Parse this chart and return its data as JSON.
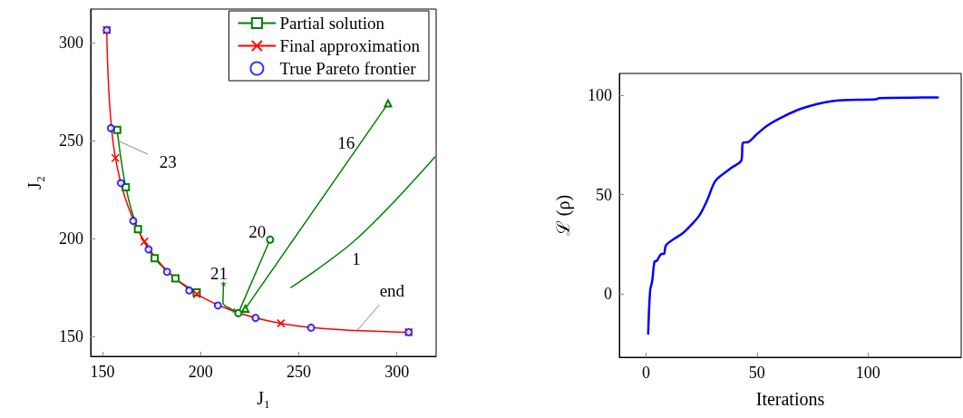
{
  "chart_data": [
    {
      "type": "line",
      "xlabel": "J₁",
      "ylabel": "J₂",
      "xlim": [
        144,
        320
      ],
      "ylim": [
        140,
        317
      ],
      "xticks": [
        150,
        200,
        250,
        300
      ],
      "yticks": [
        150,
        200,
        250,
        300
      ],
      "grid": false,
      "legend": "top right",
      "annotations": [
        {
          "text": "23",
          "x": 157.5,
          "y": 255.4
        },
        {
          "text": "16",
          "x": 281.5,
          "y": 248.8
        },
        {
          "text": "20",
          "x": 235.4,
          "y": 199.5
        },
        {
          "text": "21",
          "x": 211.7,
          "y": 177.1
        },
        {
          "text": "1",
          "x": 279.3,
          "y": 199.7
        },
        {
          "text": "end",
          "x": 280,
          "y": 153.4
        }
      ],
      "series": [
        {
          "name": "Partial solution",
          "color": "#008000",
          "marker": "square",
          "x": [
            157.5,
            161.9,
            168.1,
            176.6,
            187.2,
            198
          ],
          "values": [
            255.4,
            226.2,
            204.8,
            190,
            179.7,
            172.6
          ]
        },
        {
          "color": "#008000",
          "marker": "none",
          "x": [
            211.7,
            211.4,
            217.1
          ],
          "values": [
            177.1,
            167.4,
            163.5
          ]
        },
        {
          "type": "scatter",
          "color": "#008000",
          "marker": "star",
          "x": [
            211.7,
            217.1
          ],
          "values": [
            177.1,
            163.5
          ]
        },
        {
          "color": "#008000",
          "marker": "circle",
          "x": [
            235.4,
            219.2
          ],
          "values": [
            199.5,
            162
          ]
        },
        {
          "color": "#008000",
          "marker": "triangle",
          "x": [
            222.8,
            295.5
          ],
          "values": [
            164.3,
            268.9
          ]
        },
        {
          "color": "#008000",
          "marker": "none",
          "x": [
            246,
            279.3,
            319.4
          ],
          "values": [
            175.1,
            199.7,
            241.7
          ]
        },
        {
          "name": "Final approximation",
          "color": "#ff0000",
          "marker": "cross",
          "x": [
            152.2,
            156.6,
            171.4,
            198.1,
            240.9,
            306
          ],
          "values": [
            306.3,
            241.1,
            198.5,
            171.7,
            156.8,
            152.3
          ]
        },
        {
          "name": "True Pareto frontier",
          "type": "scatter",
          "color": "#0000ff",
          "marker": "circle",
          "x": [
            152.2,
            154.3,
            159.4,
            165.7,
            173.5,
            182.9,
            194.2,
            208.8,
            228,
            256.3,
            306
          ],
          "values": [
            306.3,
            256.3,
            228.3,
            209,
            194.5,
            183.1,
            173.6,
            165.9,
            159.6,
            154.6,
            152.3
          ]
        }
      ]
    },
    {
      "type": "line",
      "xlabel": "Iterations",
      "ylabel": "ℒ (ρ)",
      "xlim": [
        -12,
        142
      ],
      "ylim": [
        -32,
        111
      ],
      "xticks": [
        0,
        50,
        100
      ],
      "yticks": [
        0,
        50,
        100
      ],
      "grid": false,
      "marker": "none",
      "series": [
        {
          "color": "#0000ff",
          "x": [
            1,
            1.9,
            2.8,
            3.9,
            4.9,
            7.1,
            8.1,
            9,
            12.8,
            16.8,
            20.9,
            24.3,
            27.7,
            31.1,
            34.5,
            38.5,
            43,
            43.7,
            46,
            49.4,
            54.1,
            60.2,
            69.7,
            83.3,
            103.7,
            105,
            131.5
          ],
          "values": [
            -20.1,
            1.8,
            6.4,
            16.3,
            16.6,
            20.1,
            20.1,
            24.4,
            27.7,
            30.7,
            35.3,
            39.9,
            47.5,
            56.6,
            60.1,
            63.5,
            67.3,
            76.1,
            76.4,
            79.8,
            84.3,
            88.3,
            93.2,
            97,
            98,
            98.5,
            98.9
          ]
        }
      ]
    }
  ]
}
